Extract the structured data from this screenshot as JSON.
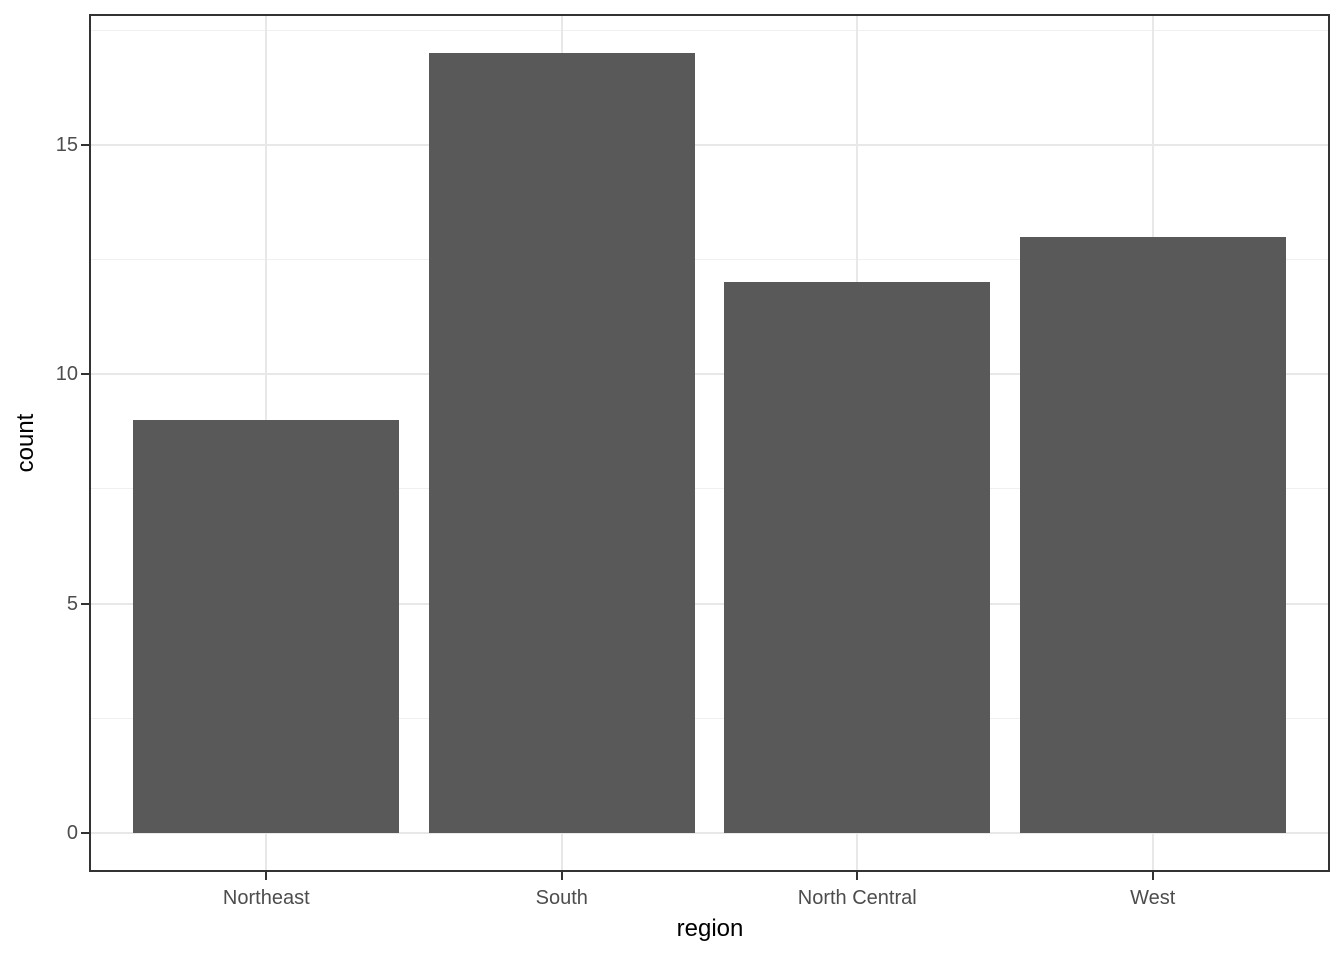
{
  "chart_data": {
    "type": "bar",
    "title": "",
    "categories": [
      "Northeast",
      "South",
      "North Central",
      "West"
    ],
    "values": [
      9,
      17,
      12,
      13
    ],
    "xlabel": "region",
    "ylabel": "count",
    "ylim": [
      -0.85,
      17.85
    ],
    "yticks": [
      0,
      5,
      10,
      15
    ],
    "yticks_minor": [
      2.5,
      7.5,
      12.5,
      17.5
    ],
    "bar_width_fraction": 0.9,
    "grid": "on",
    "legend": "none",
    "colors": {
      "bar_fill": "#595959",
      "panel_border": "#333333",
      "grid_major": "#e8e8e8",
      "grid_minor": "#f0f0f0",
      "tick_mark": "#333333",
      "tick_label": "#4d4d4d",
      "axis_title": "#000000",
      "background": "#ffffff"
    }
  }
}
